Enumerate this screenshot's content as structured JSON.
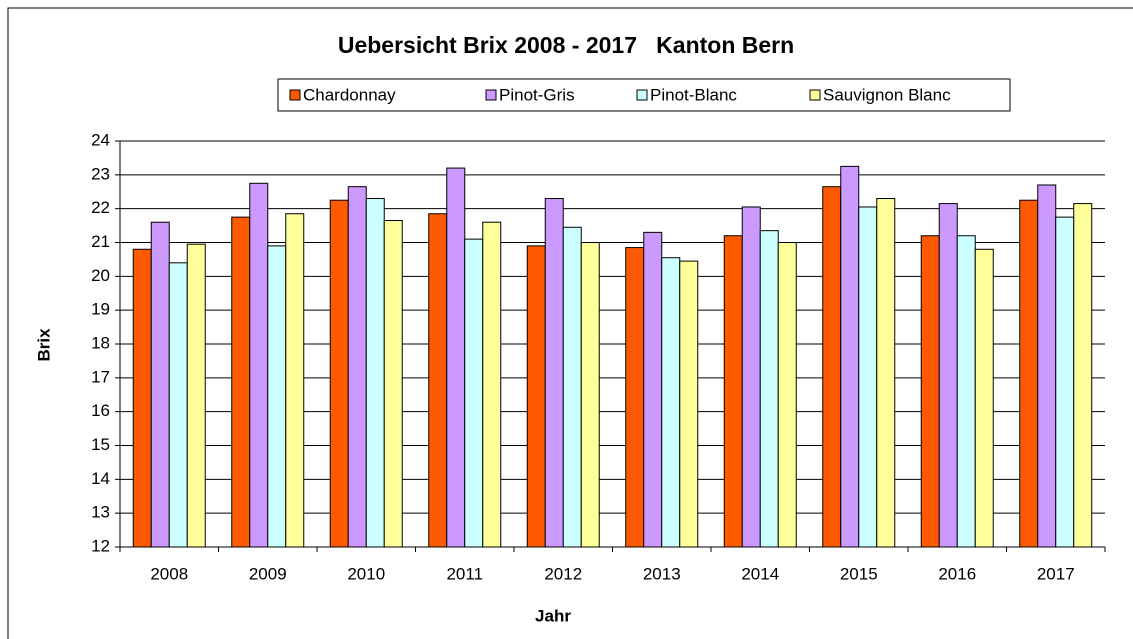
{
  "chart_data": {
    "type": "bar",
    "title": "Uebersicht Brix 2008 - 2017   Kanton Bern",
    "x_label": "Jahr",
    "y_label": "Brix",
    "categories": [
      "2008",
      "2009",
      "2010",
      "2011",
      "2012",
      "2013",
      "2014",
      "2015",
      "2016",
      "2017"
    ],
    "series": [
      {
        "name": "Chardonnay",
        "color": "#ff5a00",
        "values": [
          20.8,
          21.75,
          22.25,
          21.85,
          20.9,
          20.85,
          21.2,
          22.65,
          21.2,
          22.25
        ]
      },
      {
        "name": "Pinot-Gris",
        "color": "#cc99ff",
        "values": [
          21.6,
          22.75,
          22.65,
          23.2,
          22.3,
          21.3,
          22.05,
          23.25,
          22.15,
          22.7
        ]
      },
      {
        "name": "Pinot-Blanc",
        "color": "#ccffff",
        "values": [
          20.4,
          20.9,
          22.3,
          21.1,
          21.45,
          20.55,
          21.35,
          22.05,
          21.2,
          21.75
        ]
      },
      {
        "name": "Sauvignon Blanc",
        "color": "#ffff99",
        "values": [
          20.95,
          21.85,
          21.65,
          21.6,
          21.0,
          20.45,
          21.0,
          22.3,
          20.8,
          22.15
        ]
      }
    ],
    "ylim": [
      12,
      24
    ],
    "yticks": [
      12,
      13,
      14,
      15,
      16,
      17,
      18,
      19,
      20,
      21,
      22,
      23,
      24
    ],
    "grid": true,
    "legend": "top"
  }
}
